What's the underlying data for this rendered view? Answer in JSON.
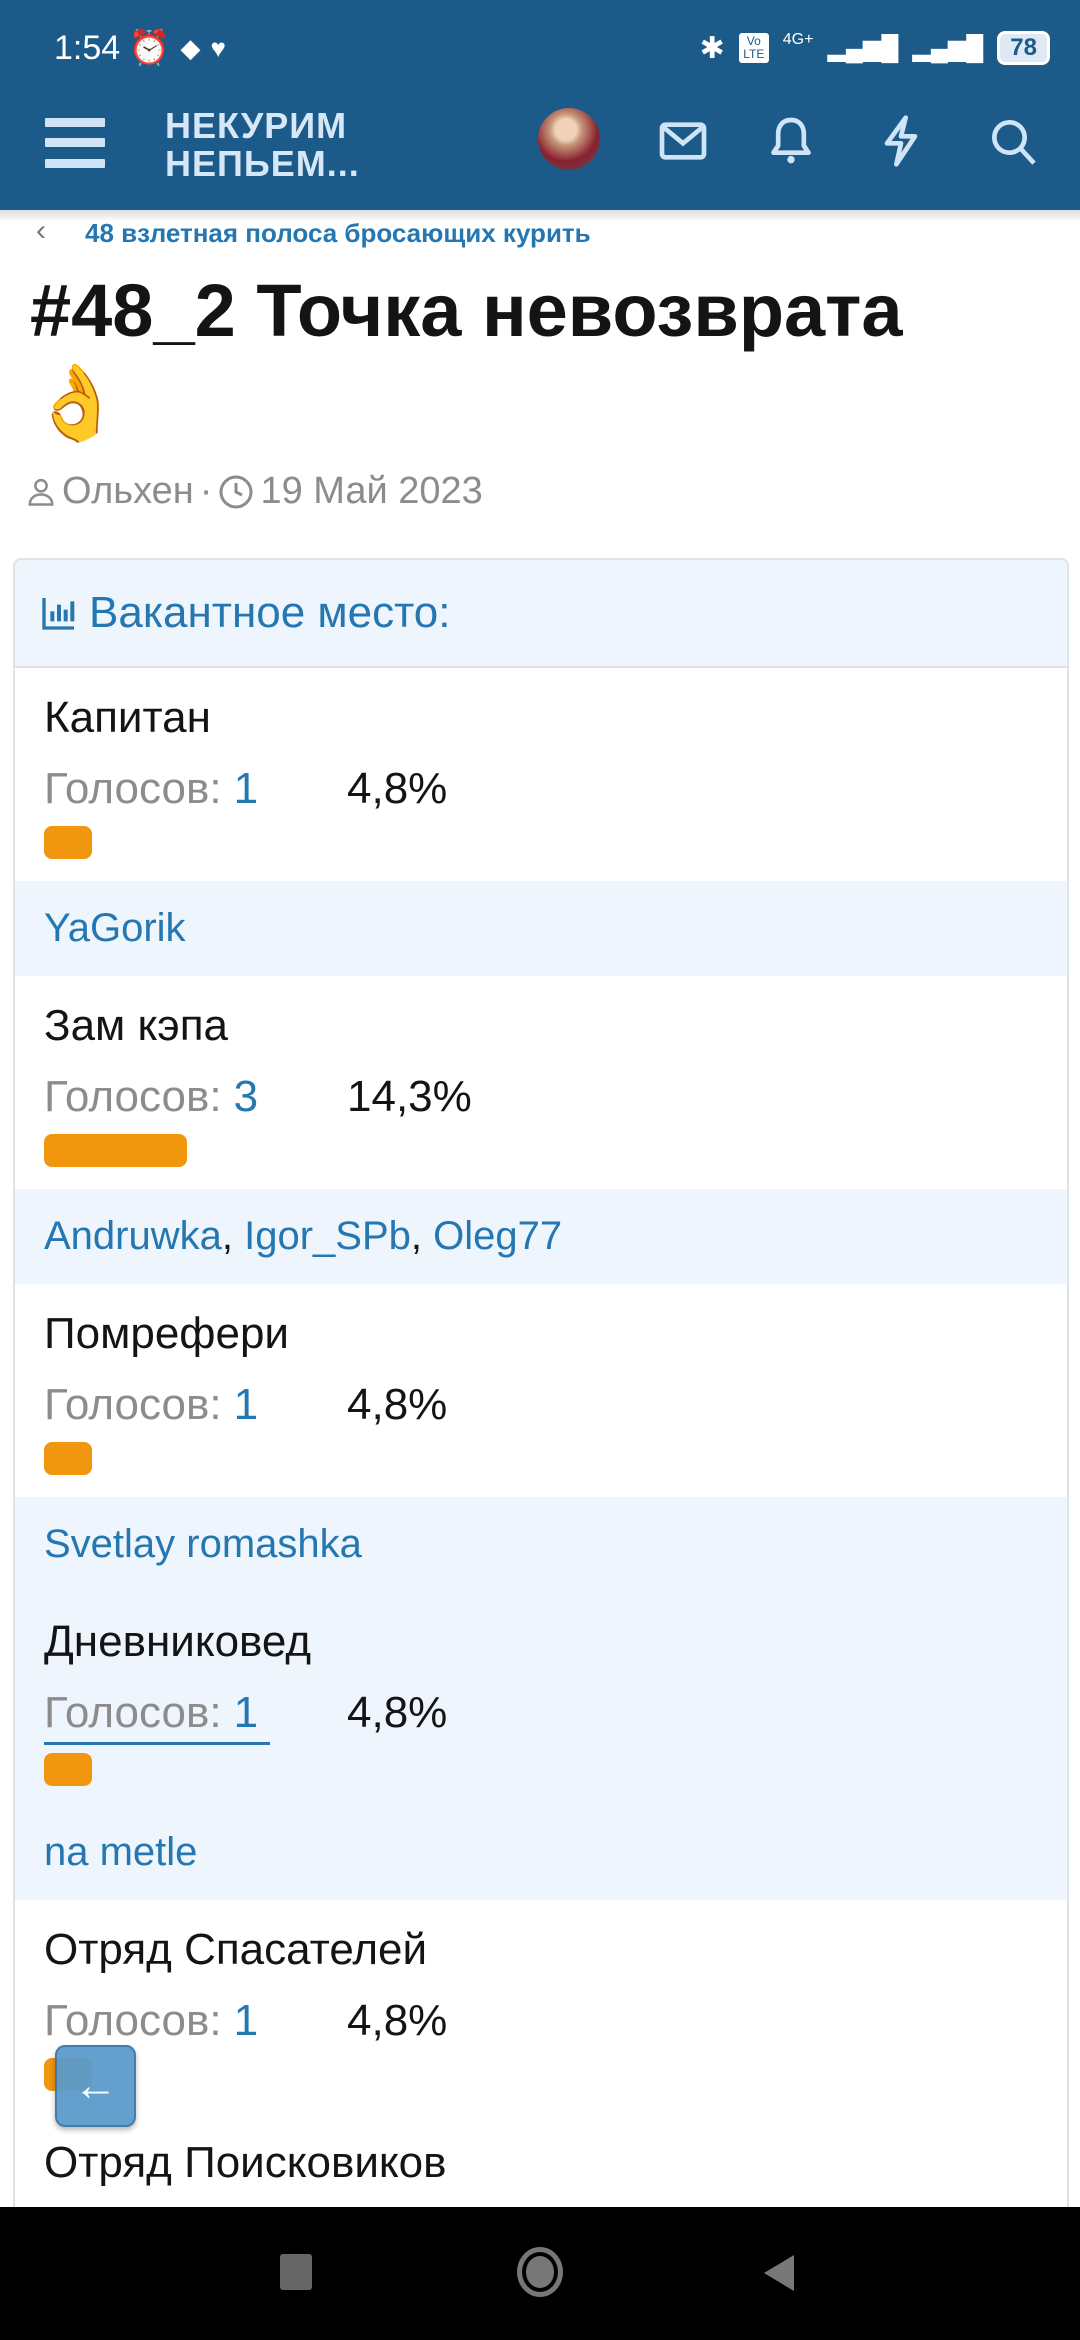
{
  "status_bar": {
    "time": "1:54",
    "network": "4G+",
    "volte": "Vo LTE",
    "battery": "78"
  },
  "header": {
    "logo_line1": "НЕКУРИМ",
    "logo_line2": "НЕПЬЕМ...",
    "icons": [
      "menu-icon",
      "avatar",
      "mail-icon",
      "bell-icon",
      "lightning-icon",
      "search-icon"
    ]
  },
  "breadcrumb": {
    "label": "48 взлетная полоса бросающих курить"
  },
  "thread": {
    "title": "#48_2 Точка невозврата",
    "emoji": "👌",
    "author": "Ольхен",
    "separator": "·",
    "date": "19 Май 2023"
  },
  "poll": {
    "title": "Вакантное место:",
    "votes_label": "Голосов:",
    "bar_color": "#f0960f",
    "options": [
      {
        "label": "Капитан",
        "votes": "1",
        "percent": "4,8%",
        "share": 4.8,
        "voters": [
          "YaGorik"
        ]
      },
      {
        "label": "Зам кэпа",
        "votes": "3",
        "percent": "14,3%",
        "share": 14.3,
        "voters": [
          "Andruwka",
          "Igor_SPb",
          "Oleg77"
        ]
      },
      {
        "label": "Помрефери",
        "votes": "1",
        "percent": "4,8%",
        "share": 4.8,
        "voters": [
          "Svetlay romashka"
        ]
      },
      {
        "label": "Дневниковед",
        "votes": "1",
        "percent": "4,8%",
        "share": 4.8,
        "voters": [
          "na metle"
        ],
        "highlighted": true
      },
      {
        "label": "Отряд Спасателей",
        "votes": "1",
        "percent": "4,8%",
        "share": 4.8,
        "voters": []
      },
      {
        "label": "Отряд Поисковиков",
        "votes": "",
        "percent": "",
        "voters": []
      }
    ]
  },
  "colors": {
    "header": "#1b5a89",
    "link": "#2577b1",
    "highlight": "#eef5fd"
  }
}
